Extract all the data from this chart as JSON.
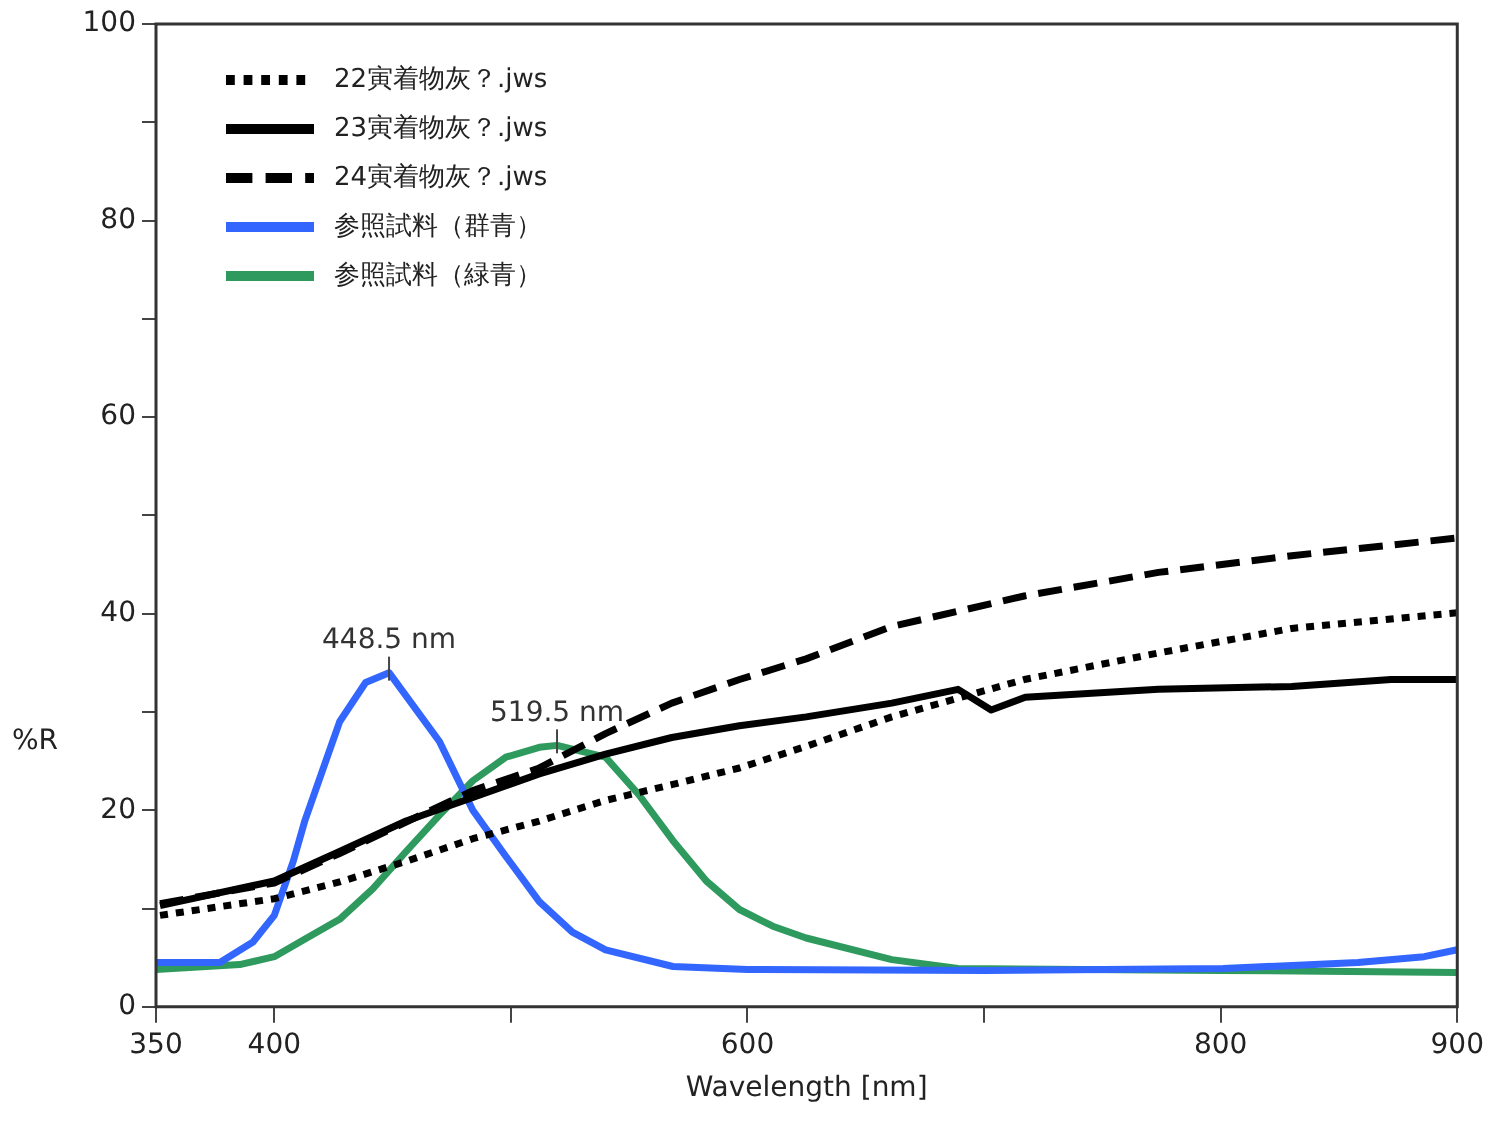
{
  "chart_data": {
    "type": "line",
    "xlabel": "Wavelength [nm]",
    "ylabel": "%R",
    "xlim": [
      350,
      900
    ],
    "ylim": [
      0,
      100
    ],
    "xticks": [
      350,
      400,
      {
        "value": 500,
        "label": null
      },
      600,
      {
        "value": 700,
        "label": null
      },
      800,
      900
    ],
    "yticks": [
      0,
      {
        "value": 10,
        "label": null
      },
      20,
      {
        "value": 30,
        "label": null
      },
      40,
      {
        "value": 50,
        "label": null
      },
      60,
      {
        "value": 70,
        "label": null
      },
      80,
      {
        "value": 90,
        "label": null
      },
      100
    ],
    "grid": false,
    "legend": "top left",
    "marker": "none",
    "series": [
      {
        "name": "22寅着物灰？.jws",
        "color": "#000000",
        "line_style": "dotted",
        "x": [
          351.7,
          400,
          427.6,
          455.7,
          483.9,
          512,
          540,
          568,
          596.6,
          624.8,
          661,
          717,
          773.7,
          830,
          900
        ],
        "values": [
          9.3,
          11,
          12.7,
          14.8,
          17.1,
          18.9,
          21,
          22.6,
          24.3,
          26.5,
          29.5,
          33.3,
          36,
          38.5,
          40.1
        ]
      },
      {
        "name": "23寅着物灰？.jws",
        "color": "#000000",
        "line_style": "solid",
        "x": [
          351.7,
          400,
          427.6,
          455.7,
          483.9,
          512,
          540,
          568,
          596.6,
          624.8,
          661,
          689,
          703,
          717.4,
          773.7,
          830,
          872,
          900
        ],
        "values": [
          10.3,
          12.8,
          15.8,
          18.9,
          21.3,
          23.7,
          25.7,
          27.4,
          28.6,
          29.5,
          30.9,
          32.3,
          30.2,
          31.5,
          32.3,
          32.6,
          33.3,
          33.3
        ]
      },
      {
        "name": "24寅着物灰？.jws",
        "color": "#000000",
        "line_style": "dashed",
        "x": [
          351.7,
          400,
          427.6,
          455.7,
          483.9,
          512,
          540,
          568,
          596.6,
          624.8,
          661,
          717,
          773.7,
          830,
          900
        ],
        "values": [
          10.5,
          12.6,
          15.6,
          18.8,
          22,
          24.3,
          27.8,
          30.9,
          33.3,
          35.4,
          38.7,
          41.8,
          44.2,
          45.9,
          47.7
        ]
      },
      {
        "name": "参照試料（群青）",
        "color": "#3366ff",
        "line_style": "solid",
        "x": [
          350,
          377,
          391,
          400,
          408,
          413,
          427.6,
          438.6,
          448.5,
          469.8,
          483.9,
          497.6,
          512,
          526,
          540,
          568.5,
          600,
          700,
          801,
          858,
          886,
          900
        ],
        "values": [
          4.5,
          4.5,
          6.6,
          9.3,
          14.8,
          19,
          29,
          33,
          34,
          27,
          20,
          15.4,
          10.7,
          7.6,
          5.8,
          4.1,
          3.8,
          3.7,
          3.9,
          4.5,
          5.1,
          5.8
        ]
      },
      {
        "name": "参照試料（緑青）",
        "color": "#2e9a5e",
        "line_style": "solid",
        "x": [
          350,
          385.4,
          400,
          413,
          427.6,
          441.6,
          455.7,
          469.8,
          483.9,
          497.9,
          512,
          519.5,
          540,
          554,
          568.5,
          582.6,
          596.6,
          610.7,
          624.8,
          661,
          689,
          800,
          900
        ],
        "values": [
          3.8,
          4.3,
          5.1,
          6.9,
          8.9,
          12,
          15.8,
          19.5,
          23,
          25.4,
          26.4,
          26.6,
          25.4,
          21.6,
          16.9,
          12.8,
          9.9,
          8.2,
          7,
          4.8,
          3.9,
          3.7,
          3.5
        ]
      }
    ],
    "annotations": [
      {
        "text": "448.5 nm",
        "x": 448.5,
        "y": 34
      },
      {
        "text": "519.5 nm",
        "x": 519.5,
        "y": 26.6
      }
    ]
  }
}
